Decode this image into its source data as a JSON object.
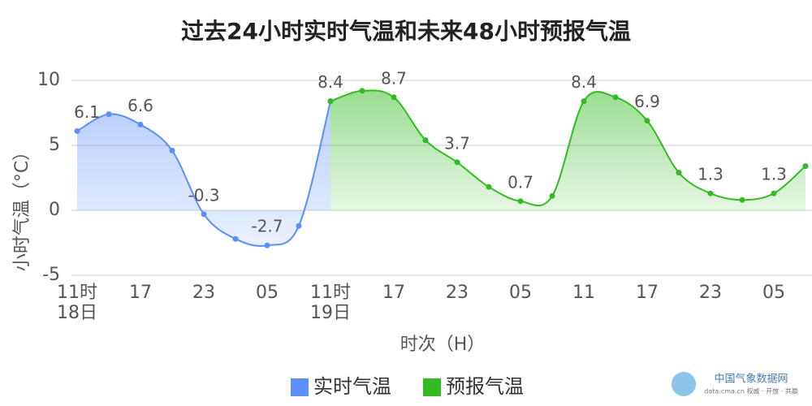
{
  "chart_data": {
    "type": "line",
    "title": "过去24小时实时气温和未来48小时预报气温",
    "ylabel": "小时气温（°C）",
    "xlabel": "时次（H）",
    "categories": [
      "11时\n18日",
      null,
      "17",
      null,
      "23",
      null,
      "05",
      null,
      "11时\n19日",
      null,
      "17",
      null,
      "23",
      null,
      "05",
      null,
      "11",
      null,
      "17",
      null,
      "23",
      null,
      "05",
      null
    ],
    "series": [
      {
        "name": "实时气温",
        "color": "#5b8ff9",
        "values": [
          6.1,
          7.4,
          6.6,
          4.6,
          -0.3,
          -2.2,
          -2.7,
          -1.2,
          8.4,
          null,
          null,
          null,
          null,
          null,
          null,
          null,
          null,
          null,
          null,
          null,
          null,
          null,
          null,
          null
        ],
        "value_labels": [
          "6.1",
          null,
          "6.6",
          null,
          "-0.3",
          null,
          "-2.7",
          null,
          "8.4",
          null,
          null,
          null,
          null,
          null,
          null,
          null,
          null,
          null,
          null,
          null,
          null,
          null,
          null,
          null
        ]
      },
      {
        "name": "预报气温",
        "color": "#33bb22",
        "values": [
          null,
          null,
          null,
          null,
          null,
          null,
          null,
          null,
          8.4,
          9.2,
          8.7,
          5.4,
          3.7,
          1.8,
          0.7,
          1.1,
          8.4,
          8.7,
          6.9,
          2.9,
          1.3,
          0.8,
          1.3,
          3.4
        ],
        "value_labels": [
          null,
          null,
          null,
          null,
          null,
          null,
          null,
          null,
          null,
          null,
          "8.7",
          null,
          "3.7",
          null,
          "0.7",
          null,
          "8.4",
          null,
          "6.9",
          null,
          "1.3",
          null,
          "1.3",
          null
        ]
      }
    ],
    "ylim": [
      -5,
      10
    ],
    "yticks": [
      -5,
      0,
      5,
      10
    ],
    "grid": true,
    "watermark": "中国气象数据网",
    "watermark_sub": "data.cma.cn 权威 · 开放 · 共赢"
  }
}
